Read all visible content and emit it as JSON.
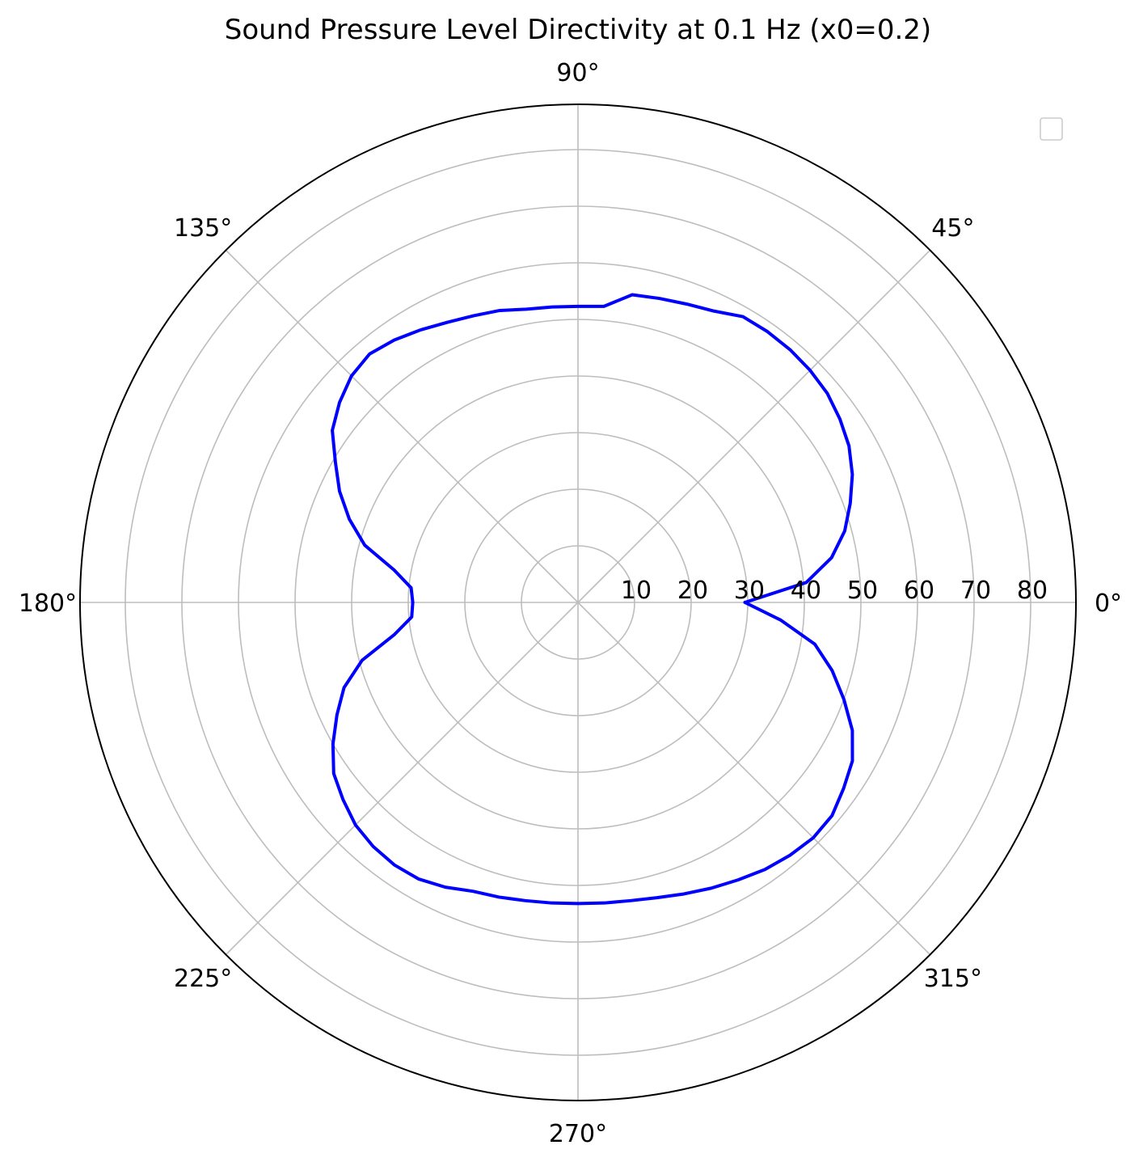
{
  "chart_data": {
    "type": "line",
    "projection": "polar",
    "title": "Sound Pressure Level Directivity at 0.1 Hz (x0=0.2)",
    "theta_unit": "degrees",
    "theta_ticks": [
      "0°",
      "45°",
      "90°",
      "135°",
      "180°",
      "225°",
      "270°",
      "315°"
    ],
    "r_ticks": [
      "10",
      "20",
      "30",
      "40",
      "50",
      "60",
      "70",
      "80"
    ],
    "r_tick_values": [
      10,
      20,
      30,
      40,
      50,
      60,
      70,
      80
    ],
    "rlim": [
      0,
      88
    ],
    "grid": true,
    "legend": {
      "placement": "top-right",
      "entries": []
    },
    "series": [
      {
        "color": "#0000ff",
        "theta": [
          0,
          5,
          10,
          15,
          20,
          25,
          30,
          35,
          40,
          45,
          50,
          55,
          60,
          65,
          70,
          75,
          80,
          85,
          90,
          95,
          100,
          105,
          110,
          115,
          120,
          125,
          130,
          135,
          140,
          145,
          150,
          155,
          160,
          165,
          170,
          175,
          180,
          185,
          190,
          195,
          200,
          205,
          210,
          215,
          220,
          225,
          230,
          235,
          240,
          245,
          250,
          255,
          260,
          265,
          270,
          275,
          280,
          285,
          290,
          295,
          300,
          305,
          310,
          315,
          320,
          325,
          330,
          335,
          340,
          345,
          350,
          355,
          360
        ],
        "r": [
          29.5,
          40.5,
          45.5,
          48.8,
          51.2,
          53.5,
          55.3,
          56.5,
          57.5,
          58.0,
          58.3,
          58.4,
          58.3,
          56.8,
          56.1,
          55.6,
          55.2,
          52.5,
          52.3,
          52.4,
          52.6,
          53.4,
          53.9,
          54.6,
          55.6,
          56.6,
          57.3,
          56.6,
          55.0,
          53.0,
          49.5,
          46.5,
          43.0,
          39.0,
          33.0,
          29.6,
          29.2,
          29.5,
          33.0,
          39.5,
          44.0,
          47.0,
          50.0,
          52.7,
          54.2,
          55.6,
          56.3,
          56.6,
          56.4,
          55.5,
          54.3,
          53.9,
          53.5,
          53.3,
          53.2,
          53.3,
          53.5,
          54.0,
          54.8,
          55.7,
          56.6,
          57.6,
          58.3,
          58.8,
          58.6,
          57.3,
          56.0,
          53.5,
          50.0,
          46.5,
          42.5,
          36.0,
          29.5
        ]
      }
    ]
  }
}
